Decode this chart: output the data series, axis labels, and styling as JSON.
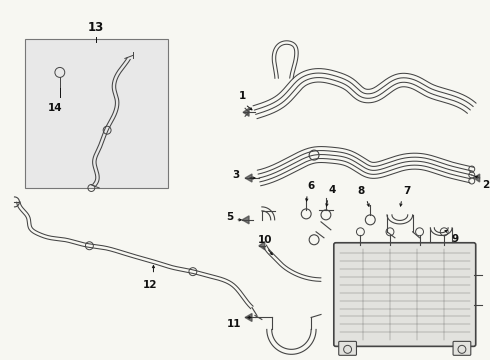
{
  "background_color": "#f7f7f2",
  "fig_width": 4.9,
  "fig_height": 3.6,
  "dpi": 100,
  "line_color": "#444444",
  "label_color": "#111111",
  "label_fontsize": 7.0,
  "box_color": "#e8e8e8",
  "module_fill": "#e2e2de",
  "border_color": "#777777"
}
